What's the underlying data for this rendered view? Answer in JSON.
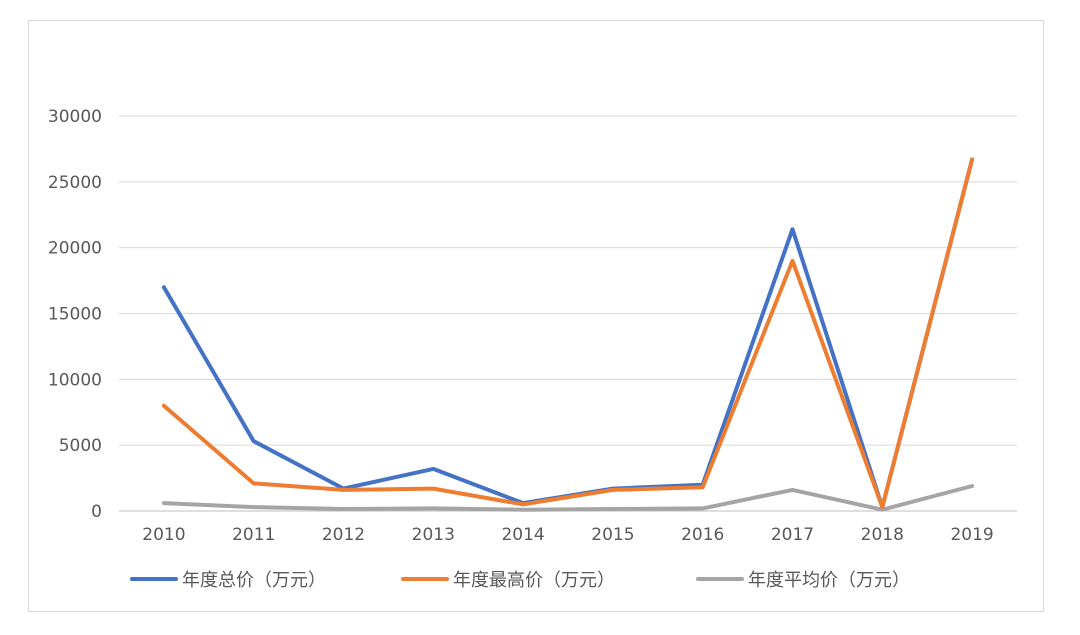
{
  "chart_data": {
    "type": "line",
    "title": "",
    "xlabel": "",
    "ylabel": "",
    "x": [
      "2010",
      "2011",
      "2012",
      "2013",
      "2014",
      "2015",
      "2016",
      "2017",
      "2018",
      "2019"
    ],
    "ylim": [
      0,
      30000
    ],
    "yticks": [
      0,
      5000,
      10000,
      15000,
      20000,
      25000,
      30000
    ],
    "ytick_labels": [
      "0",
      "5000",
      "10000",
      "15000",
      "20000",
      "25000",
      "30000"
    ],
    "grid": true,
    "legend_position": "bottom",
    "series": [
      {
        "name": "年度总价（万元）",
        "color": "#4472C4",
        "values": [
          17000,
          5300,
          1700,
          3200,
          600,
          1700,
          2000,
          21400,
          300,
          26700
        ]
      },
      {
        "name": "年度最高价（万元）",
        "color": "#ED7D31",
        "values": [
          8000,
          2100,
          1600,
          1700,
          500,
          1600,
          1800,
          19000,
          300,
          26700
        ]
      },
      {
        "name": "年度平均价（万元）",
        "color": "#A5A5A5",
        "values": [
          600,
          300,
          150,
          200,
          100,
          150,
          200,
          1600,
          100,
          1900
        ]
      }
    ]
  }
}
